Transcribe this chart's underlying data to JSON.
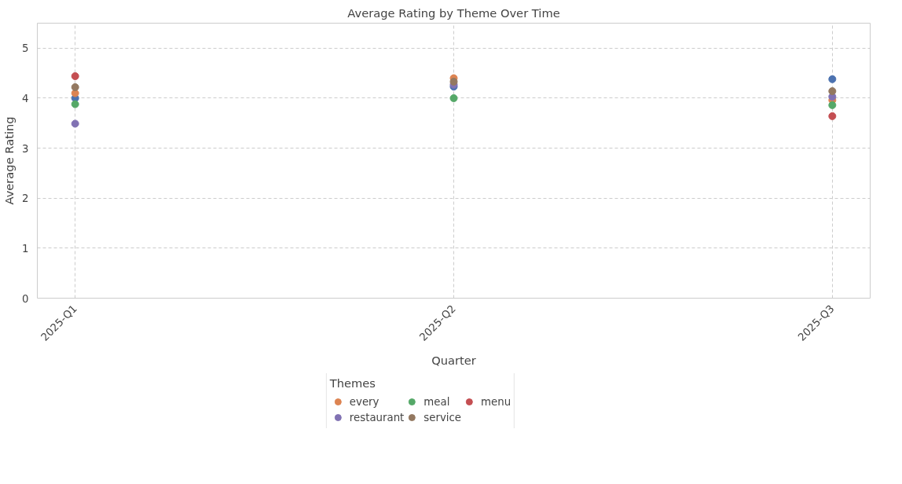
{
  "chart_data": {
    "type": "scatter",
    "title": "Average Rating by Theme Over Time",
    "xlabel": "Quarter",
    "ylabel": "Average Rating",
    "legend_title": "Themes",
    "categories": [
      "2025-Q1",
      "2025-Q2",
      "2025-Q3"
    ],
    "series": [
      {
        "color": "#4c72b0",
        "values": [
          4.0,
          4.23,
          4.38
        ]
      },
      {
        "name": "every",
        "color": "#dd8452",
        "values": [
          4.1,
          4.4,
          3.96
        ]
      },
      {
        "name": "meal",
        "color": "#55a868",
        "values": [
          3.88,
          4.0,
          3.86
        ]
      },
      {
        "name": "menu",
        "color": "#c44e52",
        "values": [
          4.44,
          null,
          3.64
        ]
      },
      {
        "name": "restaurant",
        "color": "#8172b3",
        "values": [
          3.49,
          4.27,
          4.03
        ]
      },
      {
        "name": "service",
        "color": "#937860",
        "values": [
          4.22,
          4.33,
          4.14
        ]
      }
    ],
    "ylim": [
      0,
      5.5
    ],
    "yticks": [
      0,
      1,
      2,
      3,
      4,
      5
    ],
    "grid": true,
    "legend": "bottom",
    "marker": "circle"
  }
}
